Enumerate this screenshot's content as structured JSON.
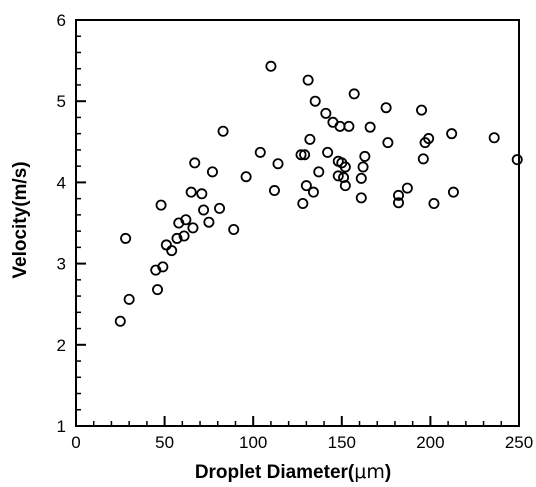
{
  "chart_data": {
    "type": "scatter",
    "title": "",
    "xlabel_prefix": "Droplet Diameter(",
    "xlabel_unit": "μm",
    "xlabel_suffix": ")",
    "ylabel": "Velocity(m/s)",
    "xlim": [
      0,
      250
    ],
    "ylim": [
      1,
      6
    ],
    "xticks": [
      0,
      50,
      100,
      150,
      200,
      250
    ],
    "yticks": [
      1,
      2,
      3,
      4,
      5,
      6
    ],
    "x_minor_step": 10,
    "y_minor_step": 0.2,
    "grid": false,
    "legend": "none",
    "marker": "open-circle",
    "marker_color": "#000000",
    "series": [
      {
        "points": [
          [
            25,
            2.29
          ],
          [
            28,
            3.31
          ],
          [
            30,
            2.56
          ],
          [
            45,
            2.92
          ],
          [
            46,
            2.68
          ],
          [
            48,
            3.72
          ],
          [
            49,
            2.96
          ],
          [
            51,
            3.23
          ],
          [
            54,
            3.16
          ],
          [
            57,
            3.31
          ],
          [
            58,
            3.5
          ],
          [
            61,
            3.34
          ],
          [
            62,
            3.54
          ],
          [
            65,
            3.88
          ],
          [
            66,
            3.44
          ],
          [
            67,
            4.24
          ],
          [
            71,
            3.86
          ],
          [
            72,
            3.66
          ],
          [
            75,
            3.51
          ],
          [
            77,
            4.13
          ],
          [
            81,
            3.68
          ],
          [
            83,
            4.63
          ],
          [
            89,
            3.42
          ],
          [
            96,
            4.07
          ],
          [
            104,
            4.37
          ],
          [
            110,
            5.43
          ],
          [
            112,
            3.9
          ],
          [
            114,
            4.23
          ],
          [
            127,
            4.34
          ],
          [
            128,
            3.74
          ],
          [
            129,
            4.34
          ],
          [
            130,
            3.96
          ],
          [
            131,
            5.26
          ],
          [
            132,
            4.53
          ],
          [
            134,
            3.88
          ],
          [
            135,
            5.0
          ],
          [
            137,
            4.13
          ],
          [
            141,
            4.85
          ],
          [
            142,
            4.37
          ],
          [
            145,
            4.74
          ],
          [
            148,
            4.08
          ],
          [
            148,
            4.26
          ],
          [
            149,
            4.69
          ],
          [
            150,
            4.24
          ],
          [
            151,
            4.06
          ],
          [
            152,
            4.19
          ],
          [
            152,
            3.96
          ],
          [
            154,
            4.69
          ],
          [
            157,
            5.09
          ],
          [
            161,
            3.81
          ],
          [
            161,
            4.05
          ],
          [
            162,
            4.19
          ],
          [
            163,
            4.32
          ],
          [
            166,
            4.68
          ],
          [
            175,
            4.92
          ],
          [
            176,
            4.49
          ],
          [
            182,
            3.84
          ],
          [
            182,
            3.75
          ],
          [
            187,
            3.93
          ],
          [
            195,
            4.89
          ],
          [
            196,
            4.29
          ],
          [
            197,
            4.49
          ],
          [
            199,
            4.54
          ],
          [
            202,
            3.74
          ],
          [
            212,
            4.6
          ],
          [
            213,
            3.88
          ],
          [
            236,
            4.55
          ],
          [
            249,
            4.28
          ]
        ]
      }
    ]
  }
}
